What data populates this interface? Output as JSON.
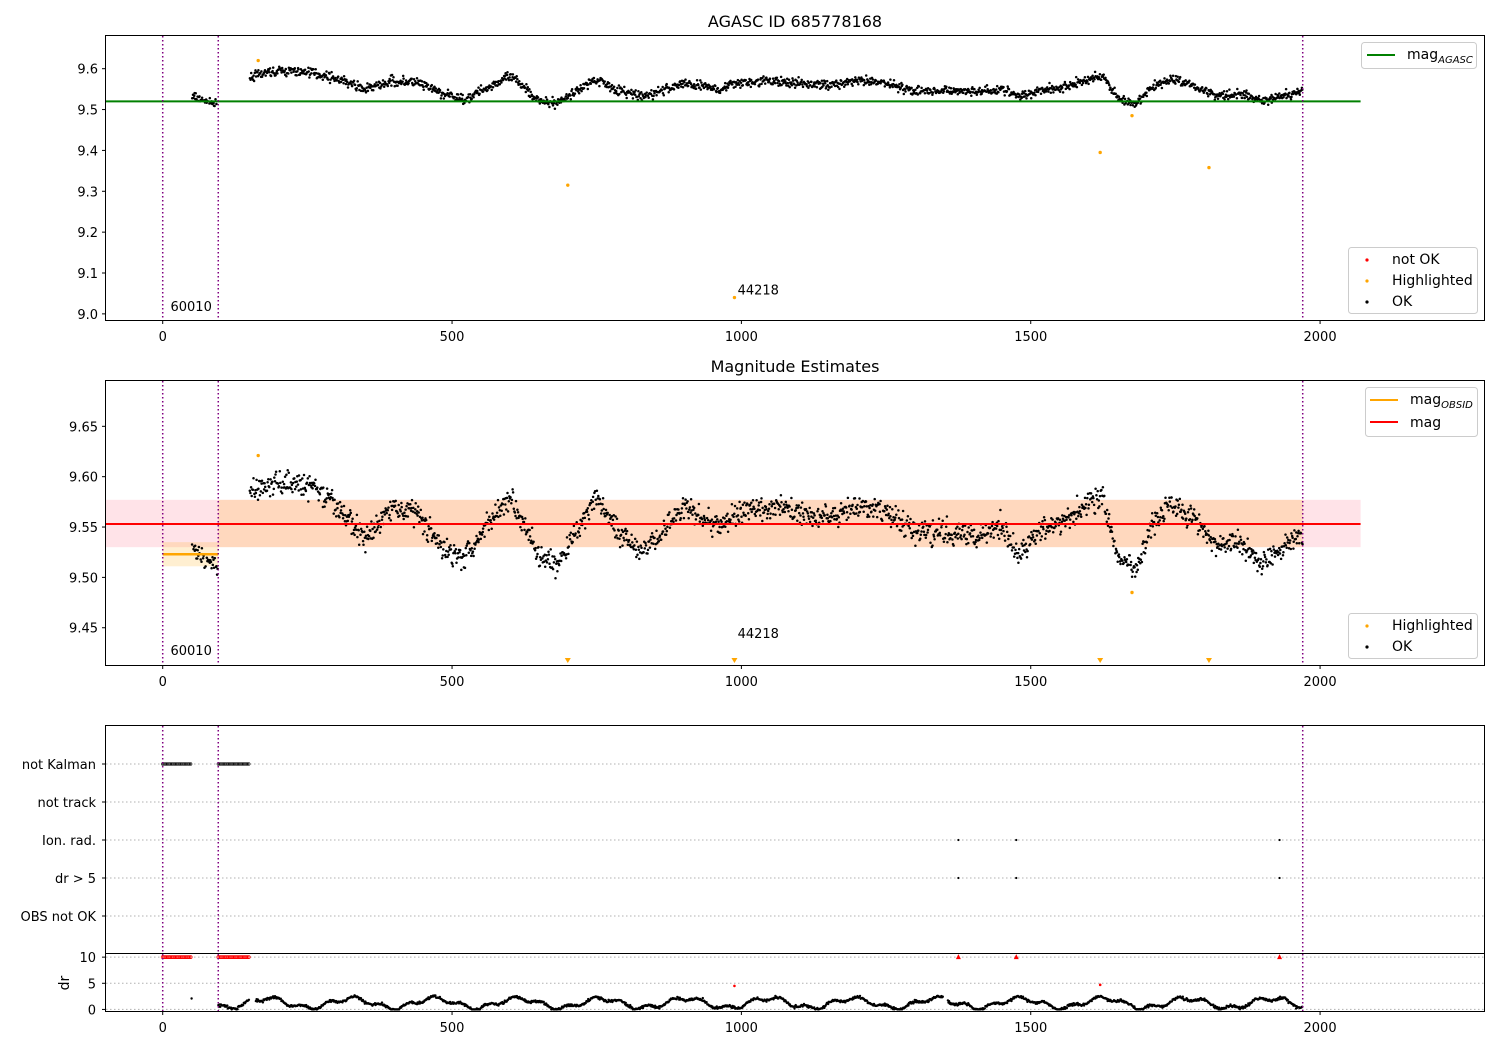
{
  "colors": {
    "ok": "#000000",
    "not_ok": "#ff0000",
    "highlighted": "#ffa500",
    "mag_agasc": "#008000",
    "mag": "#ff0000",
    "mag_obsid": "#ffa500",
    "obsid_boundary": "#800080",
    "gridline": "#b0b0b0"
  },
  "x_ticks": [
    0,
    500,
    1000,
    1500,
    2000
  ],
  "obsid_boundaries": [
    0,
    96,
    1970
  ],
  "chart_data": [
    {
      "type": "scatter",
      "title": "AGASC ID 685778168",
      "xlabel": "",
      "ylabel": "",
      "xlim": [
        -98,
        2285
      ],
      "ylim": [
        8.985,
        9.68
      ],
      "yticks": [
        "9.0",
        "9.1",
        "9.2",
        "9.3",
        "9.4",
        "9.5",
        "9.6"
      ],
      "grid": false,
      "hline": {
        "name": "mag",
        "name_sub": "AGASC",
        "value": 9.52,
        "x": [
          -98,
          2070
        ]
      },
      "legend_lines_position": "top-right",
      "legend_points_position": "lower-right",
      "legend_points": [
        "not OK",
        "Highlighted",
        "OK"
      ],
      "annotations": [
        {
          "text": "60010",
          "x": 10,
          "y": 9.0
        },
        {
          "text": "44218",
          "x": 990,
          "y": 9.04
        }
      ],
      "highlighted_points": [
        {
          "x": 165,
          "y": 9.62
        },
        {
          "x": 700,
          "y": 9.315
        },
        {
          "x": 988,
          "y": 9.04
        },
        {
          "x": 1620,
          "y": 9.395
        },
        {
          "x": 1675,
          "y": 9.485
        },
        {
          "x": 1808,
          "y": 9.358
        }
      ],
      "ok_series": {
        "x_range": [
          50,
          1970
        ],
        "trend": [
          [
            55,
            9.53
          ],
          [
            95,
            9.51
          ],
          [
            150,
            9.58
          ],
          [
            200,
            9.595
          ],
          [
            260,
            9.59
          ],
          [
            300,
            9.575
          ],
          [
            350,
            9.55
          ],
          [
            400,
            9.57
          ],
          [
            440,
            9.565
          ],
          [
            480,
            9.54
          ],
          [
            520,
            9.525
          ],
          [
            570,
            9.56
          ],
          [
            600,
            9.58
          ],
          [
            630,
            9.55
          ],
          [
            650,
            9.52
          ],
          [
            680,
            9.515
          ],
          [
            720,
            9.55
          ],
          [
            750,
            9.575
          ],
          [
            780,
            9.55
          ],
          [
            830,
            9.53
          ],
          [
            900,
            9.565
          ],
          [
            960,
            9.55
          ],
          [
            1000,
            9.565
          ],
          [
            1050,
            9.57
          ],
          [
            1100,
            9.565
          ],
          [
            1150,
            9.56
          ],
          [
            1200,
            9.57
          ],
          [
            1250,
            9.565
          ],
          [
            1300,
            9.545
          ],
          [
            1350,
            9.545
          ],
          [
            1400,
            9.545
          ],
          [
            1450,
            9.55
          ],
          [
            1480,
            9.53
          ],
          [
            1520,
            9.55
          ],
          [
            1560,
            9.555
          ],
          [
            1600,
            9.575
          ],
          [
            1625,
            9.58
          ],
          [
            1650,
            9.53
          ],
          [
            1680,
            9.51
          ],
          [
            1710,
            9.555
          ],
          [
            1740,
            9.575
          ],
          [
            1780,
            9.56
          ],
          [
            1820,
            9.535
          ],
          [
            1860,
            9.54
          ],
          [
            1900,
            9.52
          ],
          [
            1970,
            9.545
          ]
        ]
      }
    },
    {
      "type": "scatter",
      "title": "Magnitude Estimates",
      "xlabel": "",
      "ylabel": "",
      "xlim": [
        -98,
        2285
      ],
      "ylim": [
        9.413,
        9.695
      ],
      "yticks": [
        "9.45",
        "9.50",
        "9.55",
        "9.60",
        "9.65"
      ],
      "grid": false,
      "mag": {
        "name": "mag",
        "value": 9.553,
        "band": [
          9.53,
          9.577
        ],
        "x": [
          -98,
          2070
        ]
      },
      "mag_obsid": {
        "name": "mag",
        "name_sub": "OBSID",
        "segments": [
          {
            "x": [
              0,
              96
            ],
            "value": 9.523,
            "band": [
              9.511,
              9.535
            ]
          },
          {
            "x": [
              96,
              1970
            ],
            "value": 9.553,
            "band": [
              9.53,
              9.577
            ]
          }
        ]
      },
      "legend_lines_position": "top-right",
      "legend_points_position": "lower-right",
      "legend_points": [
        "Highlighted",
        "OK"
      ],
      "annotations": [
        {
          "text": "60010",
          "x": 10,
          "y": 9.42
        },
        {
          "text": "44218",
          "x": 990,
          "y": 9.437
        }
      ],
      "highlighted_points": [
        {
          "x": 165,
          "y": 9.621
        },
        {
          "x": 1675,
          "y": 9.485
        }
      ],
      "offscale_markers": [
        700,
        988,
        1620,
        1808
      ],
      "ok_series": {
        "x_range": [
          50,
          1970
        ],
        "trend": [
          [
            55,
            9.53
          ],
          [
            95,
            9.505
          ],
          [
            150,
            9.585
          ],
          [
            200,
            9.595
          ],
          [
            260,
            9.59
          ],
          [
            300,
            9.57
          ],
          [
            350,
            9.54
          ],
          [
            400,
            9.57
          ],
          [
            440,
            9.565
          ],
          [
            480,
            9.53
          ],
          [
            520,
            9.52
          ],
          [
            570,
            9.56
          ],
          [
            600,
            9.58
          ],
          [
            630,
            9.55
          ],
          [
            650,
            9.52
          ],
          [
            680,
            9.51
          ],
          [
            720,
            9.55
          ],
          [
            750,
            9.58
          ],
          [
            780,
            9.55
          ],
          [
            830,
            9.525
          ],
          [
            900,
            9.57
          ],
          [
            960,
            9.55
          ],
          [
            1000,
            9.565
          ],
          [
            1050,
            9.57
          ],
          [
            1100,
            9.565
          ],
          [
            1150,
            9.56
          ],
          [
            1200,
            9.57
          ],
          [
            1250,
            9.565
          ],
          [
            1300,
            9.545
          ],
          [
            1350,
            9.545
          ],
          [
            1400,
            9.54
          ],
          [
            1450,
            9.55
          ],
          [
            1480,
            9.52
          ],
          [
            1520,
            9.55
          ],
          [
            1560,
            9.555
          ],
          [
            1600,
            9.575
          ],
          [
            1625,
            9.58
          ],
          [
            1650,
            9.52
          ],
          [
            1680,
            9.505
          ],
          [
            1710,
            9.555
          ],
          [
            1740,
            9.575
          ],
          [
            1780,
            9.56
          ],
          [
            1820,
            9.53
          ],
          [
            1860,
            9.535
          ],
          [
            1900,
            9.515
          ],
          [
            1970,
            9.545
          ]
        ]
      }
    },
    {
      "type": "scatter",
      "title": "",
      "xlabel": "",
      "ylabel": "dr",
      "xlim": [
        -98,
        2285
      ],
      "flag_rows": [
        "not Kalman",
        "not track",
        "Ion. rad.",
        "dr > 5",
        "OBS not OK"
      ],
      "flags": {
        "not Kalman": [
          [
            0,
            50
          ],
          [
            96,
            150
          ]
        ],
        "not track": [],
        "Ion. rad.": [
          1375,
          1475,
          1930
        ],
        "dr > 5": [
          1375,
          1475,
          1930
        ]
      },
      "dr_ylim": [
        -0.3,
        10.6
      ],
      "dr_yticks": [
        "0",
        "5",
        "10"
      ],
      "dr_capped_red": [
        [
          0,
          50
        ],
        [
          96,
          150
        ],
        1375,
        1475,
        1930
      ],
      "dr_red_points": [
        {
          "x": 988,
          "y": 4.5
        },
        {
          "x": 1620,
          "y": 4.7
        }
      ],
      "dr_gaps": [
        [
          50,
          96
        ],
        [
          150,
          160
        ],
        [
          1348,
          1356
        ],
        [
          1970,
          2285
        ]
      ]
    }
  ]
}
